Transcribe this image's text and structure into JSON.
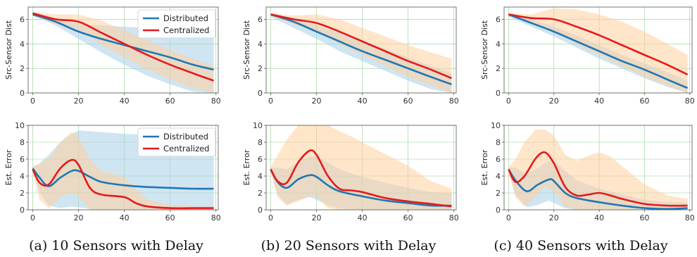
{
  "colors": {
    "distributed": "#1f77b4",
    "centralized": "#e41a1c",
    "distributed_band": "#aacfe8",
    "centralized_band": "#ffcf9e",
    "grid": "#8fcf8f",
    "axes": "#555555"
  },
  "captions": [
    "(a) 10 Sensors with Delay",
    "(b) 20 Sensors with Delay",
    "(c) 40 Sensors with Delay"
  ],
  "chart_data": [
    {
      "type": "line",
      "panel": "a-top",
      "ylabel": "Src-Sensor Dist",
      "xlim": [
        -2,
        81
      ],
      "ylim": [
        0,
        7
      ],
      "xticks": [
        "0",
        "20",
        "40",
        "60",
        "80"
      ],
      "yticks": [
        "0",
        "2",
        "4",
        "6"
      ],
      "legend": "top-right",
      "series": [
        {
          "name": "Distributed",
          "x": [
            0,
            10,
            20,
            30,
            40,
            50,
            60,
            70,
            79
          ],
          "y": [
            6.4,
            5.8,
            5.0,
            4.4,
            3.9,
            3.4,
            2.9,
            2.3,
            1.9
          ],
          "band_upper": [
            6.5,
            6.1,
            5.6,
            5.5,
            5.4,
            5.3,
            5.3,
            5.3,
            5.3
          ],
          "band_lower": [
            6.3,
            5.5,
            4.4,
            3.3,
            2.3,
            1.4,
            0.7,
            0.1,
            0.0
          ]
        },
        {
          "name": "Centralized",
          "x": [
            0,
            10,
            20,
            30,
            40,
            50,
            60,
            70,
            79
          ],
          "y": [
            6.5,
            6.0,
            5.8,
            4.9,
            4.0,
            3.1,
            2.3,
            1.6,
            1.0
          ],
          "band_upper": [
            6.6,
            6.4,
            6.4,
            5.9,
            5.1,
            4.3,
            3.5,
            2.8,
            2.2
          ],
          "band_lower": [
            6.3,
            5.6,
            5.2,
            3.9,
            2.9,
            1.9,
            1.1,
            0.4,
            0.0
          ]
        }
      ]
    },
    {
      "type": "line",
      "panel": "b-top",
      "ylabel": "Src-Sensor Dist",
      "xlim": [
        -2,
        81
      ],
      "ylim": [
        0,
        7
      ],
      "xticks": [
        "0",
        "20",
        "40",
        "60",
        "80"
      ],
      "yticks": [
        "0",
        "2",
        "4",
        "6"
      ],
      "series": [
        {
          "name": "Distributed",
          "x": [
            0,
            10,
            20,
            30,
            40,
            50,
            60,
            70,
            79
          ],
          "y": [
            6.4,
            5.8,
            5.0,
            4.2,
            3.4,
            2.7,
            2.0,
            1.3,
            0.7
          ],
          "band_upper": [
            6.5,
            6.1,
            5.5,
            4.9,
            4.2,
            3.6,
            2.9,
            2.2,
            1.6
          ],
          "band_lower": [
            6.2,
            5.3,
            4.4,
            3.4,
            2.6,
            1.8,
            1.0,
            0.3,
            0.0
          ]
        },
        {
          "name": "Centralized",
          "x": [
            0,
            10,
            20,
            30,
            40,
            50,
            60,
            70,
            79
          ],
          "y": [
            6.4,
            6.0,
            5.7,
            5.0,
            4.2,
            3.4,
            2.6,
            1.9,
            1.2
          ],
          "band_upper": [
            6.5,
            6.3,
            6.4,
            6.0,
            5.3,
            4.6,
            3.9,
            3.3,
            2.8
          ],
          "band_lower": [
            6.3,
            5.6,
            5.0,
            4.0,
            3.1,
            2.2,
            1.3,
            0.6,
            0.0
          ]
        }
      ]
    },
    {
      "type": "line",
      "panel": "c-top",
      "ylabel": "Src-Sensor Dist",
      "xlim": [
        -2,
        81
      ],
      "ylim": [
        0,
        7
      ],
      "xticks": [
        "0",
        "20",
        "40",
        "60",
        "80"
      ],
      "yticks": [
        "0",
        "2",
        "4",
        "6"
      ],
      "series": [
        {
          "name": "Distributed",
          "x": [
            0,
            10,
            20,
            30,
            40,
            50,
            60,
            70,
            79
          ],
          "y": [
            6.4,
            5.7,
            5.0,
            4.2,
            3.4,
            2.6,
            1.9,
            1.1,
            0.4
          ],
          "band_upper": [
            6.5,
            6.0,
            5.4,
            4.7,
            3.9,
            3.1,
            2.4,
            1.7,
            1.0
          ],
          "band_lower": [
            6.2,
            5.4,
            4.6,
            3.7,
            2.8,
            2.0,
            1.2,
            0.5,
            0.0
          ]
        },
        {
          "name": "Centralized",
          "x": [
            0,
            10,
            20,
            30,
            40,
            50,
            60,
            70,
            79
          ],
          "y": [
            6.4,
            6.1,
            6.0,
            5.4,
            4.7,
            3.9,
            3.1,
            2.3,
            1.5
          ],
          "band_upper": [
            6.5,
            6.4,
            6.9,
            6.8,
            6.4,
            5.8,
            5.0,
            4.0,
            3.1
          ],
          "band_lower": [
            6.3,
            5.7,
            5.0,
            4.0,
            3.1,
            2.2,
            1.3,
            0.6,
            0.0
          ]
        }
      ]
    },
    {
      "type": "line",
      "panel": "a-bottom",
      "ylabel": "Est. Error",
      "xlim": [
        -2,
        81
      ],
      "ylim": [
        0,
        10
      ],
      "xticks": [
        "0",
        "20",
        "40",
        "60",
        "80"
      ],
      "yticks": [
        "0",
        "2",
        "4",
        "6",
        "8",
        "10"
      ],
      "legend": "top-right",
      "series": [
        {
          "name": "Distributed",
          "x": [
            0,
            3,
            7,
            12,
            17,
            20,
            25,
            30,
            40,
            50,
            60,
            70,
            79
          ],
          "y": [
            4.9,
            3.8,
            2.8,
            3.8,
            4.6,
            4.6,
            3.9,
            3.3,
            2.9,
            2.7,
            2.6,
            2.5,
            2.5
          ],
          "band_upper": [
            5.1,
            5.5,
            6.5,
            8.0,
            9.0,
            9.4,
            9.3,
            9.2,
            9.0,
            8.9,
            8.8,
            8.8,
            8.8
          ],
          "band_lower": [
            4.6,
            2.0,
            0.5,
            0.2,
            0.4,
            0.3,
            0.1,
            0.0,
            0.0,
            0.0,
            0.0,
            0.0,
            0.0
          ]
        },
        {
          "name": "Centralized",
          "x": [
            0,
            3,
            7,
            12,
            17,
            20,
            25,
            30,
            40,
            45,
            50,
            60,
            70,
            79
          ],
          "y": [
            4.8,
            3.2,
            3.0,
            4.9,
            5.9,
            5.3,
            2.6,
            1.8,
            1.5,
            0.8,
            0.4,
            0.2,
            0.2,
            0.2
          ],
          "band_upper": [
            5.1,
            5.5,
            6.0,
            8.0,
            9.2,
            8.6,
            6.0,
            4.6,
            3.9,
            2.5,
            1.2,
            0.6,
            0.4,
            0.4
          ],
          "band_lower": [
            4.5,
            1.2,
            0.2,
            1.5,
            2.0,
            1.6,
            0.0,
            0.0,
            0.0,
            0.0,
            0.0,
            0.0,
            0.0,
            0.0
          ]
        }
      ]
    },
    {
      "type": "line",
      "panel": "b-bottom",
      "ylabel": "Est. Error",
      "xlim": [
        -2,
        81
      ],
      "ylim": [
        0,
        10
      ],
      "xticks": [
        "0",
        "20",
        "40",
        "60",
        "80"
      ],
      "yticks": [
        "0",
        "2",
        "4",
        "6",
        "8",
        "10"
      ],
      "series": [
        {
          "name": "Distributed",
          "x": [
            0,
            3,
            7,
            12,
            17,
            20,
            25,
            30,
            40,
            50,
            60,
            70,
            79
          ],
          "y": [
            4.8,
            3.3,
            2.6,
            3.6,
            4.1,
            3.9,
            2.9,
            2.2,
            1.6,
            1.1,
            0.8,
            0.5,
            0.5
          ],
          "band_upper": [
            5.0,
            5.0,
            4.8,
            5.6,
            6.3,
            6.3,
            5.6,
            4.8,
            3.9,
            3.2,
            2.6,
            2.1,
            2.0
          ],
          "band_lower": [
            4.6,
            1.8,
            0.6,
            1.2,
            1.5,
            1.2,
            0.5,
            0.2,
            0.0,
            0.0,
            0.0,
            0.0,
            0.0
          ]
        },
        {
          "name": "Centralized",
          "x": [
            0,
            3,
            7,
            12,
            17,
            20,
            25,
            30,
            35,
            40,
            50,
            60,
            70,
            79
          ],
          "y": [
            4.8,
            3.4,
            3.2,
            5.6,
            7.0,
            6.5,
            4.0,
            2.5,
            2.3,
            2.1,
            1.4,
            1.0,
            0.7,
            0.4
          ],
          "band_upper": [
            5.0,
            6.5,
            8.3,
            10,
            10,
            10,
            10,
            9.3,
            8.7,
            8.0,
            6.6,
            5.2,
            3.4,
            2.5
          ],
          "band_lower": [
            4.5,
            1.5,
            0.5,
            1.0,
            1.6,
            1.6,
            0.2,
            0.0,
            0.0,
            0.0,
            0.0,
            0.0,
            0.0,
            0.0
          ]
        }
      ]
    },
    {
      "type": "line",
      "panel": "c-bottom",
      "ylabel": "Est. Error",
      "xlim": [
        -2,
        81
      ],
      "ylim": [
        0,
        10
      ],
      "xticks": [
        "0",
        "20",
        "40",
        "60",
        "80"
      ],
      "yticks": [
        "0",
        "2",
        "4",
        "6",
        "8",
        "10"
      ],
      "series": [
        {
          "name": "Distributed",
          "x": [
            0,
            3,
            8,
            13,
            18,
            20,
            25,
            30,
            40,
            50,
            60,
            70,
            79
          ],
          "y": [
            4.8,
            3.5,
            2.2,
            3.0,
            3.6,
            3.4,
            2.0,
            1.4,
            0.9,
            0.5,
            0.2,
            0.1,
            0.2
          ],
          "band_upper": [
            5.0,
            5.0,
            4.2,
            5.0,
            5.8,
            5.8,
            4.6,
            3.5,
            2.5,
            1.8,
            1.2,
            0.9,
            0.9
          ],
          "band_lower": [
            4.6,
            1.8,
            0.3,
            0.6,
            1.1,
            0.8,
            0.2,
            0.0,
            0.0,
            0.0,
            0.0,
            0.0,
            0.0
          ]
        },
        {
          "name": "Centralized",
          "x": [
            0,
            3,
            7,
            12,
            16,
            20,
            25,
            30,
            35,
            40,
            45,
            50,
            60,
            70,
            79
          ],
          "y": [
            4.8,
            3.3,
            4.0,
            6.1,
            6.8,
            5.5,
            2.7,
            1.7,
            1.8,
            2.0,
            1.7,
            1.3,
            0.7,
            0.5,
            0.5
          ],
          "band_upper": [
            5.0,
            6.0,
            8.0,
            9.5,
            9.5,
            8.8,
            6.5,
            5.8,
            6.4,
            6.8,
            6.3,
            5.2,
            3.0,
            1.7,
            1.3
          ],
          "band_lower": [
            4.5,
            1.5,
            0.4,
            1.5,
            2.8,
            2.2,
            0.3,
            0.0,
            0.0,
            0.0,
            0.0,
            0.0,
            0.0,
            0.0,
            0.0
          ]
        }
      ]
    }
  ]
}
